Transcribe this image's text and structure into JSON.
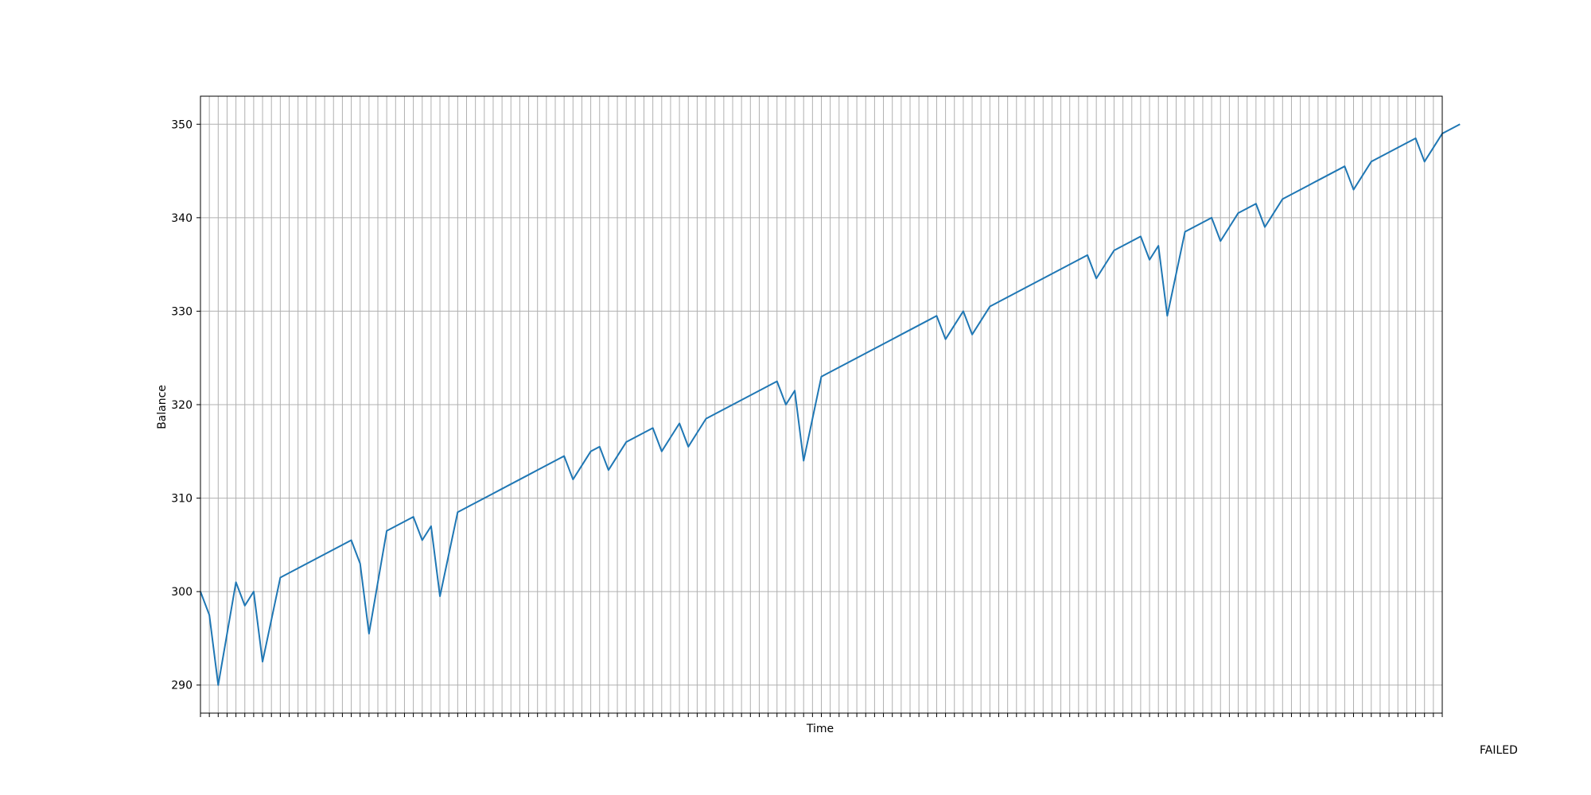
{
  "status_text": "FAILED",
  "chart_data": {
    "type": "line",
    "title": "",
    "xlabel": "Time",
    "ylabel": "Balance",
    "x_tick_count": 141,
    "ylim": [
      287,
      353
    ],
    "y_ticks": [
      290,
      300,
      310,
      320,
      330,
      340,
      350
    ],
    "grid": true,
    "line_color": "#1f77b4",
    "grid_color": "#b0b0b0",
    "series": [
      {
        "values": [
          300,
          297.5,
          290,
          295.5,
          301,
          298.5,
          300,
          292.5,
          297,
          301.5,
          302,
          302.5,
          303,
          303.5,
          304,
          304.5,
          305,
          305.5,
          303,
          295.5,
          301,
          306.5,
          307,
          307.5,
          308,
          305.5,
          307,
          299.5,
          304,
          308.5,
          309,
          309.5,
          310,
          310.5,
          311,
          311.5,
          312,
          312.5,
          313,
          313.5,
          314,
          314.5,
          312,
          313.5,
          315,
          315.5,
          313,
          314.5,
          316,
          316.5,
          317,
          317.5,
          315,
          316.5,
          318,
          315.5,
          317,
          318.5,
          319,
          319.5,
          320,
          320.5,
          321,
          321.5,
          322,
          322.5,
          320,
          321.5,
          314,
          318.5,
          323,
          323.5,
          324,
          324.5,
          325,
          325.5,
          326,
          326.5,
          327,
          327.5,
          328,
          328.5,
          329,
          329.5,
          327,
          328.5,
          330,
          327.5,
          329,
          330.5,
          331,
          331.5,
          332,
          332.5,
          333,
          333.5,
          334,
          334.5,
          335,
          335.5,
          336,
          333.5,
          335,
          336.5,
          337,
          337.5,
          338,
          335.5,
          337,
          329.5,
          334,
          338.5,
          339,
          339.5,
          340,
          337.5,
          339,
          340.5,
          341,
          341.5,
          339,
          340.5,
          342,
          342.5,
          343,
          343.5,
          344,
          344.5,
          345,
          345.5,
          343,
          344.5,
          346,
          346.5,
          347,
          347.5,
          348,
          348.5,
          346,
          347.5,
          349,
          349.5,
          350
        ]
      }
    ]
  }
}
